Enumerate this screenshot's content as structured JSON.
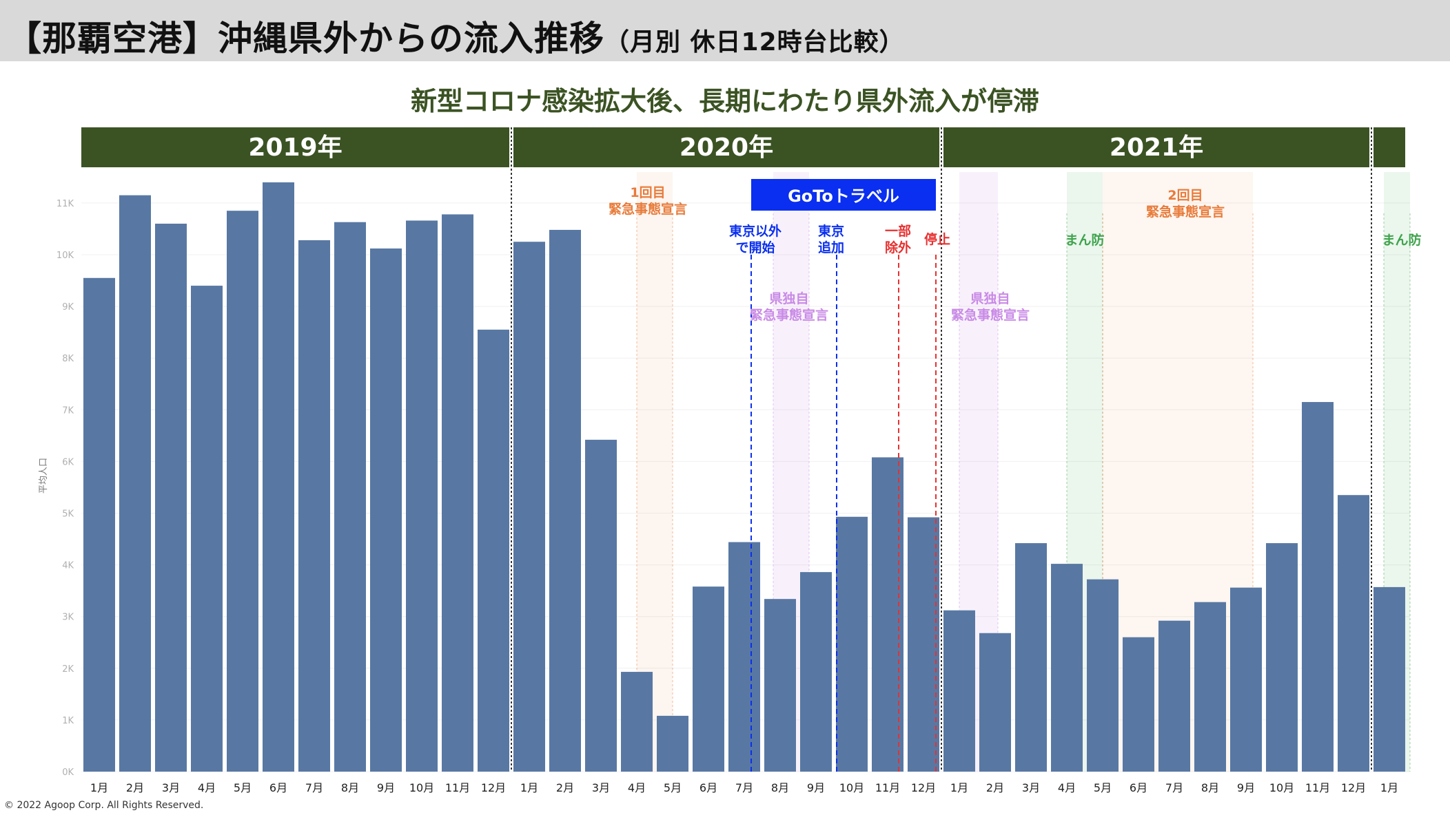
{
  "header": {
    "title": "【那覇空港】沖縄県外からの流入推移",
    "title_sub": "（月別 休日12時台比較）"
  },
  "subtitle": "新型コロナ感染拡大後、長期にわたり県外流入が停滞",
  "footer": {
    "copyright": "© 2022 Agoop Corp. All Rights Reserved."
  },
  "colors": {
    "bar": "#5878a3",
    "year_band": "#3b5323",
    "goto": "#0a2ff0",
    "emergency": "#e87b3a",
    "prefecture": "#c98ae6",
    "manbo": "#3fa34d",
    "red_line": "#e83030"
  },
  "chart_data": {
    "type": "bar",
    "ylabel": "平均人口",
    "ylim": [
      0,
      11700
    ],
    "yticks": [
      "0K",
      "1K",
      "2K",
      "3K",
      "4K",
      "5K",
      "6K",
      "7K",
      "8K",
      "9K",
      "10K",
      "11K"
    ],
    "years": [
      "2019年",
      "2020年",
      "2021年"
    ],
    "categories": [
      "1月",
      "2月",
      "3月",
      "4月",
      "5月",
      "6月",
      "7月",
      "8月",
      "9月",
      "10月",
      "11月",
      "12月",
      "1月",
      "2月",
      "3月",
      "4月",
      "5月",
      "6月",
      "7月",
      "8月",
      "9月",
      "10月",
      "11月",
      "12月",
      "1月",
      "2月",
      "3月",
      "4月",
      "5月",
      "6月",
      "7月",
      "8月",
      "9月",
      "10月",
      "11月",
      "12月",
      "1月"
    ],
    "values": [
      9550,
      11150,
      10600,
      9400,
      10850,
      11400,
      10280,
      10630,
      10120,
      10660,
      10780,
      8550,
      10250,
      10480,
      6420,
      1930,
      1080,
      3580,
      4440,
      3340,
      3860,
      4930,
      6080,
      4920,
      3120,
      2680,
      4420,
      4020,
      3720,
      2600,
      2920,
      3280,
      3560,
      4420,
      7150,
      5350,
      3570
    ],
    "annotations": {
      "emergency1": [
        "1回目",
        "緊急事態宣言"
      ],
      "goto": "GoToトラベル",
      "goto_start": [
        "東京以外",
        "で開始"
      ],
      "tokyo_add": [
        "東京",
        "追加"
      ],
      "partial_exclusion": [
        "一部",
        "除外"
      ],
      "stop": "停止",
      "pref1": [
        "県独自",
        "緊急事態宣言"
      ],
      "pref2": [
        "県独自",
        "緊急事態宣言"
      ],
      "manbo1": "まん防",
      "emergency2": [
        "2回目",
        "緊急事態宣言"
      ],
      "manbo2": "まん防"
    }
  }
}
